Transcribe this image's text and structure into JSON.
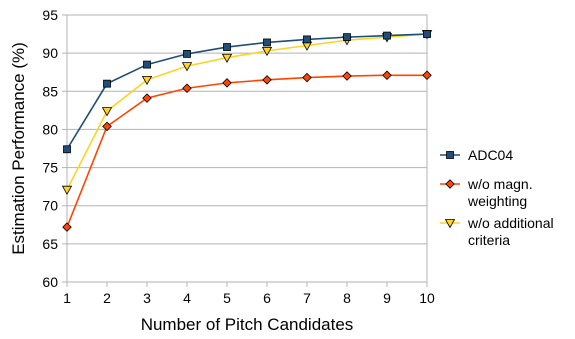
{
  "chart_data": {
    "type": "line",
    "xlabel": "Number of Pitch Candidates",
    "ylabel": "Estimation Performance (%)",
    "x": [
      1,
      2,
      3,
      4,
      5,
      6,
      7,
      8,
      9,
      10
    ],
    "xticks": [
      "1",
      "2",
      "3",
      "4",
      "5",
      "6",
      "7",
      "8",
      "9",
      "10"
    ],
    "yticks": [
      "60",
      "65",
      "70",
      "75",
      "80",
      "85",
      "90",
      "95"
    ],
    "xlim": [
      1,
      10
    ],
    "ylim": [
      60,
      95
    ],
    "grid": "horizontal",
    "legend_position": "right",
    "series": [
      {
        "name": "ADC04",
        "name_lines": [
          "ADC04"
        ],
        "color": "#1f4e79",
        "marker": "square",
        "values": [
          77.4,
          86.0,
          88.5,
          89.9,
          90.8,
          91.4,
          91.8,
          92.1,
          92.3,
          92.5
        ]
      },
      {
        "name": "w/o magn. weighting",
        "name_lines": [
          "w/o magn.",
          "weighting"
        ],
        "color": "#ff4500",
        "marker": "diamond",
        "values": [
          67.2,
          80.4,
          84.1,
          85.4,
          86.1,
          86.5,
          86.8,
          87.0,
          87.1,
          87.1
        ]
      },
      {
        "name": "w/o  additional criteria",
        "name_lines": [
          "w/o  additional",
          "criteria"
        ],
        "color": "#ffd320",
        "marker": "triangle-down",
        "values": [
          72.1,
          82.4,
          86.5,
          88.3,
          89.4,
          90.3,
          91.0,
          91.7,
          92.1,
          92.5
        ]
      }
    ]
  }
}
